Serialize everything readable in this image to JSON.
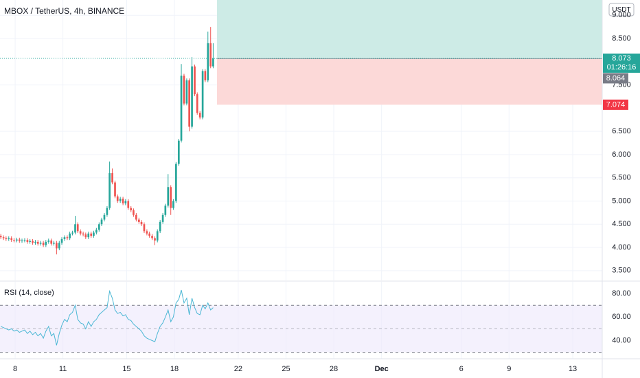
{
  "chart_data": [
    {
      "type": "candlestick",
      "title": "MBOX / TetherUS, 4h, BINANCE",
      "currency": "USDT",
      "x": [
        7.1,
        7.27,
        7.43,
        7.6,
        7.77,
        7.93,
        8.1,
        8.27,
        8.43,
        8.6,
        8.77,
        8.93,
        9.1,
        9.27,
        9.43,
        9.6,
        9.77,
        9.93,
        10.1,
        10.27,
        10.43,
        10.6,
        10.77,
        10.93,
        11.1,
        11.27,
        11.43,
        11.6,
        11.77,
        11.93,
        12.1,
        12.27,
        12.43,
        12.6,
        12.77,
        12.93,
        13.1,
        13.27,
        13.43,
        13.6,
        13.77,
        13.93,
        14.1,
        14.27,
        14.43,
        14.6,
        14.77,
        14.93,
        15.1,
        15.27,
        15.43,
        15.6,
        15.77,
        15.93,
        16.1,
        16.27,
        16.43,
        16.6,
        16.77,
        16.93,
        17.1,
        17.27,
        17.43,
        17.6,
        17.77,
        17.93,
        18.1,
        18.27,
        18.43,
        18.6,
        18.77,
        18.93,
        19.1,
        19.27,
        19.43,
        19.6,
        19.77,
        19.93,
        20.1,
        20.27,
        20.43
      ],
      "open": [
        4.25,
        4.22,
        4.2,
        4.18,
        4.2,
        4.16,
        4.15,
        4.17,
        4.14,
        4.15,
        4.16,
        4.12,
        4.14,
        4.1,
        4.12,
        4.08,
        4.1,
        4.05,
        4.12,
        4.15,
        4.08,
        4.1,
        3.98,
        4.1,
        4.18,
        4.22,
        4.2,
        4.3,
        4.32,
        4.5,
        4.35,
        4.3,
        4.28,
        4.22,
        4.3,
        4.25,
        4.32,
        4.38,
        4.5,
        4.6,
        4.7,
        4.85,
        5.6,
        5.4,
        5.1,
        5.0,
        5.05,
        4.95,
        5.0,
        4.85,
        4.8,
        4.7,
        4.6,
        4.55,
        4.5,
        4.35,
        4.3,
        4.25,
        4.2,
        4.15,
        4.35,
        4.55,
        4.7,
        4.9,
        5.3,
        4.85,
        5.0,
        5.8,
        6.3,
        7.7,
        7.1,
        7.6,
        6.6,
        7.9,
        7.3,
        6.9,
        6.8,
        7.8,
        7.6,
        8.4,
        7.9
      ],
      "high": [
        4.29,
        4.26,
        4.24,
        4.24,
        4.24,
        4.2,
        4.21,
        4.21,
        4.19,
        4.2,
        4.2,
        4.18,
        4.18,
        4.16,
        4.16,
        4.14,
        4.14,
        4.16,
        4.19,
        4.19,
        4.14,
        4.14,
        4.14,
        4.22,
        4.26,
        4.26,
        4.34,
        4.36,
        4.68,
        4.54,
        4.39,
        4.34,
        4.32,
        4.34,
        4.34,
        4.36,
        4.42,
        4.54,
        4.64,
        4.74,
        4.89,
        5.85,
        5.7,
        5.44,
        5.14,
        5.09,
        5.09,
        5.04,
        5.04,
        4.89,
        4.84,
        4.74,
        4.64,
        4.59,
        4.54,
        4.39,
        4.34,
        4.29,
        4.24,
        4.39,
        4.59,
        4.74,
        4.94,
        5.58,
        5.34,
        5.04,
        5.84,
        6.34,
        7.95,
        7.74,
        7.64,
        7.64,
        8.1,
        7.94,
        7.34,
        6.94,
        7.84,
        7.84,
        8.65,
        8.75,
        8.4
      ],
      "low": [
        4.18,
        4.16,
        4.14,
        4.14,
        4.12,
        4.11,
        4.11,
        4.1,
        4.1,
        4.11,
        4.08,
        4.08,
        4.06,
        4.06,
        4.04,
        4.04,
        4.01,
        4.01,
        4.08,
        4.04,
        4.04,
        3.85,
        3.94,
        4.06,
        4.14,
        4.16,
        4.16,
        4.26,
        4.28,
        4.31,
        4.26,
        4.24,
        4.18,
        4.18,
        4.21,
        4.21,
        4.28,
        4.34,
        4.46,
        4.56,
        4.66,
        4.81,
        5.36,
        5.06,
        4.96,
        4.96,
        4.91,
        4.91,
        4.81,
        4.76,
        4.66,
        4.56,
        4.51,
        4.46,
        4.31,
        4.26,
        4.21,
        4.16,
        4.05,
        4.11,
        4.31,
        4.51,
        4.66,
        4.86,
        4.7,
        4.81,
        4.96,
        5.76,
        6.26,
        7.06,
        7.06,
        6.5,
        6.56,
        7.26,
        6.86,
        6.76,
        6.76,
        7.56,
        7.56,
        7.86,
        7.86
      ],
      "close": [
        4.22,
        4.2,
        4.18,
        4.2,
        4.16,
        4.15,
        4.17,
        4.14,
        4.15,
        4.16,
        4.12,
        4.14,
        4.1,
        4.12,
        4.08,
        4.1,
        4.05,
        4.12,
        4.15,
        4.08,
        4.1,
        3.98,
        4.1,
        4.18,
        4.22,
        4.2,
        4.3,
        4.32,
        4.5,
        4.35,
        4.3,
        4.28,
        4.22,
        4.3,
        4.25,
        4.32,
        4.38,
        4.5,
        4.6,
        4.7,
        4.85,
        5.6,
        5.4,
        5.1,
        5.0,
        5.05,
        4.95,
        5.0,
        4.85,
        4.8,
        4.7,
        4.6,
        4.55,
        4.5,
        4.35,
        4.3,
        4.25,
        4.2,
        4.15,
        4.35,
        4.55,
        4.7,
        4.9,
        5.3,
        4.85,
        5.0,
        5.8,
        6.3,
        7.7,
        7.1,
        7.6,
        6.6,
        7.9,
        7.3,
        6.9,
        6.8,
        7.8,
        7.6,
        8.4,
        7.9,
        8.07
      ],
      "up_color": "#26a69a",
      "down_color": "#ef5350",
      "xlim": [
        7.05,
        44.85
      ],
      "xticks": [
        8,
        11,
        15,
        18,
        22,
        25,
        28,
        {
          "value": 31,
          "label": "Dec"
        },
        {
          "value": 36,
          "label": "6"
        },
        {
          "value": 39,
          "label": "9"
        },
        {
          "value": 43,
          "label": "13"
        }
      ],
      "ylim": [
        3.29,
        9.33
      ],
      "yticks": [
        {
          "value": 3.5,
          "label": "3.500"
        },
        {
          "value": 4,
          "label": "4.000"
        },
        {
          "value": 4.5,
          "label": "4.500"
        },
        {
          "value": 5,
          "label": "5.000"
        },
        {
          "value": 5.5,
          "label": "5.500"
        },
        {
          "value": 6,
          "label": "6.000"
        },
        {
          "value": 6.5,
          "label": "6.500"
        },
        {
          "value": 7.5,
          "label": "7.500"
        },
        {
          "value": 8.5,
          "label": "8.500"
        },
        {
          "value": 9,
          "label": "9.000"
        }
      ],
      "grid": true,
      "last_price": 8.073,
      "countdown": "01:26:16",
      "position": {
        "start": 20.67,
        "entry": 8.064,
        "stop": 7.074,
        "target_color": "#cdebe6",
        "stop_color": "#fcd9d8",
        "stop_label_color": "#f23645"
      }
    },
    {
      "type": "line",
      "title": "RSI (14, close)",
      "values": [
        52,
        51,
        50,
        49,
        50,
        48,
        49,
        47,
        48,
        49,
        46,
        48,
        45,
        47,
        44,
        46,
        42,
        48,
        52,
        44,
        46,
        36,
        46,
        53,
        58,
        56,
        62,
        64,
        70,
        58,
        55,
        54,
        50,
        56,
        52,
        56,
        58,
        62,
        64,
        66,
        68,
        82,
        76,
        66,
        63,
        64,
        61,
        62,
        58,
        57,
        54,
        52,
        50,
        48,
        44,
        42,
        41,
        40,
        39,
        46,
        52,
        55,
        60,
        66,
        56,
        60,
        72,
        75,
        83,
        72,
        76,
        62,
        76,
        68,
        63,
        62,
        70,
        67,
        72,
        66,
        68
      ],
      "color": "#4ab7d4",
      "ylim": [
        24.5,
        90
      ],
      "yticks": [
        {
          "value": 40,
          "label": "40.00"
        },
        {
          "value": 60,
          "label": "60.00"
        },
        {
          "value": 80,
          "label": "80.00"
        }
      ],
      "bands": [
        30,
        50,
        70
      ],
      "band_color": "#ede8fb"
    }
  ]
}
